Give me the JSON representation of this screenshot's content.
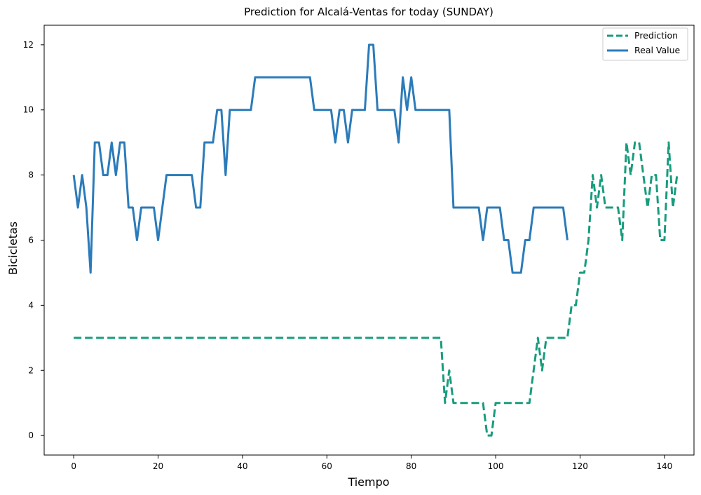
{
  "chart_data": {
    "type": "line",
    "title": "Prediction for Alcalá-Ventas for today (SUNDAY)",
    "xlabel": "Tiempo",
    "ylabel": "Bicicletas",
    "xlim": [
      -7,
      147
    ],
    "ylim": [
      -0.6,
      12.6
    ],
    "xticks": [
      0,
      20,
      40,
      60,
      80,
      100,
      120,
      140
    ],
    "yticks": [
      0,
      2,
      4,
      6,
      8,
      10,
      12
    ],
    "grid": false,
    "legend": "top-right",
    "series": [
      {
        "name": "Prediction",
        "color": "#179c7d",
        "dash": "dashed",
        "x": [
          0,
          10,
          20,
          30,
          40,
          50,
          60,
          70,
          80,
          87,
          88,
          89,
          90,
          95,
          97,
          98,
          99,
          100,
          105,
          108,
          109,
          110,
          111,
          112,
          113,
          117,
          118,
          119,
          120,
          121,
          122,
          123,
          124,
          125,
          126,
          127,
          128,
          129,
          130,
          131,
          132,
          133,
          134,
          135,
          136,
          137,
          138,
          139,
          140,
          141,
          142,
          143
        ],
        "y": [
          3,
          3,
          3,
          3,
          3,
          3,
          3,
          3,
          3,
          3,
          1,
          2,
          1,
          1,
          1,
          0,
          0,
          1,
          1,
          1,
          2,
          3,
          2,
          3,
          3,
          3,
          4,
          4,
          5,
          5,
          6,
          8,
          7,
          8,
          7,
          7,
          7,
          7,
          6,
          9,
          8,
          9,
          9,
          8,
          7,
          8,
          8,
          6,
          6,
          9,
          7,
          8
        ]
      },
      {
        "name": "Real Value",
        "color": "#2b7bba",
        "dash": "solid",
        "x": [
          0,
          1,
          2,
          3,
          4,
          5,
          6,
          7,
          8,
          9,
          10,
          11,
          12,
          13,
          14,
          15,
          16,
          17,
          18,
          19,
          20,
          21,
          22,
          23,
          24,
          25,
          26,
          27,
          28,
          29,
          30,
          31,
          32,
          33,
          34,
          35,
          36,
          37,
          38,
          39,
          40,
          41,
          42,
          43,
          44,
          45,
          46,
          47,
          48,
          49,
          50,
          51,
          52,
          53,
          54,
          55,
          56,
          57,
          58,
          59,
          60,
          61,
          62,
          63,
          64,
          65,
          66,
          67,
          68,
          69,
          70,
          71,
          72,
          73,
          74,
          75,
          76,
          77,
          78,
          79,
          80,
          81,
          82,
          83,
          84,
          85,
          86,
          87,
          88,
          89,
          90,
          91,
          92,
          93,
          94,
          95,
          96,
          97,
          98,
          99,
          100,
          101,
          102,
          103,
          104,
          105,
          106,
          107,
          108,
          109,
          110,
          111,
          112,
          113,
          114,
          115,
          116,
          117
        ],
        "y": [
          8,
          7,
          8,
          7,
          5,
          9,
          9,
          8,
          8,
          9,
          8,
          9,
          9,
          7,
          7,
          6,
          7,
          7,
          7,
          7,
          6,
          7,
          8,
          8,
          8,
          8,
          8,
          8,
          8,
          7,
          7,
          9,
          9,
          9,
          10,
          10,
          8,
          10,
          10,
          10,
          10,
          10,
          10,
          11,
          11,
          11,
          11,
          11,
          11,
          11,
          11,
          11,
          11,
          11,
          11,
          11,
          11,
          10,
          10,
          10,
          10,
          10,
          9,
          10,
          10,
          9,
          10,
          10,
          10,
          10,
          12,
          12,
          10,
          10,
          10,
          10,
          10,
          9,
          11,
          10,
          11,
          10,
          10,
          10,
          10,
          10,
          10,
          10,
          10,
          10,
          7,
          7,
          7,
          7,
          7,
          7,
          7,
          6,
          7,
          7,
          7,
          7,
          6,
          6,
          5,
          5,
          5,
          6,
          6,
          7,
          7,
          7,
          7,
          7,
          7,
          7,
          7,
          6
        ]
      }
    ]
  }
}
